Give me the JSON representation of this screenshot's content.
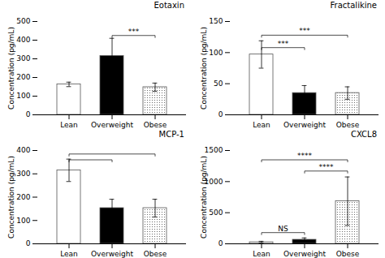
{
  "chart_data": [
    {
      "type": "bar",
      "title": "Eotaxin",
      "ylabel": "Concentration (pg/mL)",
      "categories": [
        "Lean",
        "Overweight",
        "Obese"
      ],
      "values": [
        163,
        315,
        148
      ],
      "errors": [
        12,
        95,
        22
      ],
      "colors": [
        "white",
        "black",
        "dotted"
      ],
      "ylim": [
        0,
        500
      ],
      "yticks": [
        0,
        100,
        200,
        300,
        400,
        500
      ],
      "grid": false,
      "annotations": [
        {
          "x1": "Overweight",
          "x2": "Obese",
          "y": 425,
          "label": "***"
        }
      ]
    },
    {
      "type": "bar",
      "title": "Fractalikine",
      "ylabel": "Concentration (pg/mL)",
      "categories": [
        "Lean",
        "Overweight",
        "Obese"
      ],
      "values": [
        97,
        35,
        35
      ],
      "errors": [
        22,
        12,
        10
      ],
      "colors": [
        "white",
        "black",
        "dotted"
      ],
      "ylim": [
        0,
        150
      ],
      "yticks": [
        0,
        50,
        100,
        150
      ],
      "grid": false,
      "annotations": [
        {
          "x1": "Lean",
          "x2": "Overweight",
          "y": 108,
          "label": "***"
        },
        {
          "x1": "Lean",
          "x2": "Obese",
          "y": 128,
          "label": "***"
        }
      ]
    },
    {
      "type": "bar",
      "title": "MCP-1",
      "ylabel": "Concentration (pg/mL)",
      "categories": [
        "Lean",
        "Overweight",
        "Obese"
      ],
      "values": [
        315,
        153,
        153
      ],
      "errors": [
        48,
        38,
        38
      ],
      "colors": [
        "white",
        "black",
        "dotted"
      ],
      "ylim": [
        0,
        400
      ],
      "yticks": [
        0,
        100,
        200,
        300,
        400
      ],
      "grid": false,
      "annotations": [
        {
          "x1": "Lean",
          "x2": "Overweight",
          "y": 360
        },
        {
          "x1": "Lean",
          "x2": "Obese",
          "y": 385
        }
      ]
    },
    {
      "type": "bar",
      "title": "CXCL8",
      "ylabel": "Concentration (pg/mL)",
      "categories": [
        "Lean",
        "Overweight",
        "Obese"
      ],
      "values": [
        25,
        65,
        685
      ],
      "errors": [
        15,
        30,
        390
      ],
      "colors": [
        "white",
        "black",
        "dotted"
      ],
      "ylim": [
        0,
        1500
      ],
      "yticks": [
        0,
        500,
        1000,
        1500
      ],
      "grid": false,
      "annotations": [
        {
          "x1": "Lean",
          "x2": "Overweight",
          "y": 180,
          "label": "NS"
        },
        {
          "x1": "Lean",
          "x2": "Obese",
          "y": 1350,
          "label": "****"
        },
        {
          "x1": "Overweight",
          "x2": "Obese",
          "y": 1170,
          "label": "****"
        }
      ]
    }
  ]
}
